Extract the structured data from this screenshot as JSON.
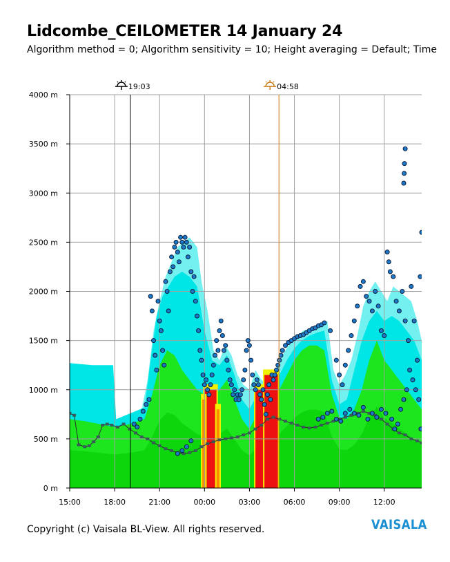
{
  "header": {
    "title": "Lidcombe_CEILOMETER 14 January 24",
    "subtitle": "Algorithm method = 0; Algorithm sensitivity = 10; Height averaging = Default; Time"
  },
  "footer": {
    "copyright": "Copyright (c) Vaisala BL-View. All rights reserved.",
    "logo_text": "VAISALA"
  },
  "colors": {
    "brand": "#1a8fd4",
    "grid": "#a0a0a0",
    "sunset_marker": "#000000",
    "sunrise_marker": "#c87814",
    "backscatter_scale": [
      "#ffffff",
      "#00e5e5",
      "#1ee61e",
      "#00c800",
      "#f0f000",
      "#ff8c00",
      "#ee1111"
    ],
    "cloud_point_fill": "#1e78c8",
    "cloud_point_stroke": "#0a1e3c"
  },
  "chart_data": {
    "type": "heatmap",
    "title": "Lidcombe_CEILOMETER 14 January 24",
    "ylabel": "",
    "xlabel": "",
    "x_unit": "hours since 15:00",
    "x_range": [
      0,
      23.5
    ],
    "x_ticks": [
      {
        "label": "15:00",
        "value": 0
      },
      {
        "label": "18:00",
        "value": 3
      },
      {
        "label": "21:00",
        "value": 6
      },
      {
        "label": "00:00",
        "value": 9
      },
      {
        "label": "03:00",
        "value": 12
      },
      {
        "label": "06:00",
        "value": 15
      },
      {
        "label": "09:00",
        "value": 18
      },
      {
        "label": "12:00",
        "value": 21
      }
    ],
    "y_range": [
      0,
      4000
    ],
    "y_ticks": [
      {
        "label": "0 m",
        "value": 0
      },
      {
        "label": "500 m",
        "value": 500
      },
      {
        "label": "1000 m",
        "value": 1000
      },
      {
        "label": "1500 m",
        "value": 1500
      },
      {
        "label": "2000 m",
        "value": 2000
      },
      {
        "label": "2500 m",
        "value": 2500
      },
      {
        "label": "3000 m",
        "value": 3000
      },
      {
        "label": "3500 m",
        "value": 3500
      },
      {
        "label": "4000 m",
        "value": 4000
      }
    ],
    "grid": true,
    "sun_events": [
      {
        "type": "sunset",
        "label": "19:03",
        "x": 4.05
      },
      {
        "type": "sunrise",
        "label": "04:58",
        "x": 13.97
      }
    ],
    "aerosol_layer_top": [
      [
        0,
        1000
      ],
      [
        0.5,
        1080
      ],
      [
        1,
        1250
      ],
      [
        1.5,
        1230
      ],
      [
        2,
        1220
      ],
      [
        2.7,
        1200
      ],
      [
        3,
        700
      ],
      [
        3.6,
        680
      ],
      [
        4.2,
        720
      ],
      [
        4.8,
        800
      ],
      [
        5.2,
        1100
      ],
      [
        5.6,
        1600
      ],
      [
        6.0,
        1900
      ],
      [
        6.4,
        2150
      ],
      [
        6.8,
        2300
      ],
      [
        7.2,
        2450
      ],
      [
        7.6,
        2500
      ],
      [
        8.0,
        2550
      ],
      [
        8.5,
        2450
      ],
      [
        8.8,
        2100
      ],
      [
        9.2,
        1800
      ],
      [
        9.6,
        1400
      ],
      [
        10.0,
        1300
      ],
      [
        10.4,
        1450
      ],
      [
        10.8,
        1350
      ],
      [
        11.2,
        1150
      ],
      [
        11.6,
        1050
      ],
      [
        12.0,
        1000
      ],
      [
        12.4,
        1200
      ],
      [
        12.8,
        1100
      ],
      [
        13.2,
        1050
      ],
      [
        13.6,
        1150
      ],
      [
        14.0,
        1300
      ],
      [
        14.4,
        1400
      ],
      [
        14.8,
        1500
      ],
      [
        15.2,
        1550
      ],
      [
        15.6,
        1600
      ],
      [
        16.0,
        1620
      ],
      [
        16.4,
        1640
      ],
      [
        16.8,
        1660
      ],
      [
        17.2,
        1700
      ],
      [
        17.6,
        1200
      ],
      [
        18.0,
        1050
      ],
      [
        18.4,
        1150
      ],
      [
        18.8,
        1300
      ],
      [
        19.2,
        1550
      ],
      [
        19.6,
        1850
      ],
      [
        20.0,
        2000
      ],
      [
        20.4,
        2100
      ],
      [
        20.8,
        2000
      ],
      [
        21.2,
        1900
      ],
      [
        21.6,
        2050
      ],
      [
        22.0,
        2000
      ],
      [
        22.4,
        1950
      ],
      [
        22.8,
        1900
      ],
      [
        23.2,
        1700
      ],
      [
        23.5,
        1500
      ]
    ],
    "cyan_layer_top": [
      [
        0,
        1270
      ],
      [
        1.5,
        1250
      ],
      [
        2.9,
        1250
      ],
      [
        3.1,
        700
      ],
      [
        5.0,
        820
      ],
      [
        5.4,
        1300
      ],
      [
        5.8,
        1750
      ],
      [
        6.2,
        1950
      ],
      [
        6.6,
        2050
      ],
      [
        7.0,
        2150
      ],
      [
        7.5,
        2200
      ],
      [
        8.0,
        2150
      ],
      [
        8.5,
        2050
      ],
      [
        9.0,
        1600
      ],
      [
        9.5,
        1300
      ],
      [
        10.0,
        1250
      ],
      [
        10.5,
        1350
      ],
      [
        11.0,
        1150
      ],
      [
        11.5,
        900
      ],
      [
        12.0,
        800
      ],
      [
        12.5,
        950
      ],
      [
        13.0,
        900
      ],
      [
        13.5,
        1000
      ],
      [
        14.0,
        1150
      ],
      [
        14.5,
        1300
      ],
      [
        15.0,
        1420
      ],
      [
        15.5,
        1500
      ],
      [
        16.0,
        1550
      ],
      [
        16.5,
        1580
      ],
      [
        17.0,
        1600
      ],
      [
        17.5,
        1100
      ],
      [
        18.0,
        850
      ],
      [
        18.5,
        900
      ],
      [
        19.0,
        1200
      ],
      [
        19.5,
        1500
      ],
      [
        20.0,
        1700
      ],
      [
        20.5,
        1800
      ],
      [
        21.0,
        1700
      ],
      [
        21.5,
        1750
      ],
      [
        22.0,
        1700
      ],
      [
        22.5,
        1600
      ],
      [
        23.0,
        1500
      ],
      [
        23.5,
        1300
      ]
    ],
    "green_layer_top": [
      [
        0,
        700
      ],
      [
        1.0,
        680
      ],
      [
        2.0,
        650
      ],
      [
        3.0,
        620
      ],
      [
        4.0,
        650
      ],
      [
        5.0,
        700
      ],
      [
        5.5,
        950
      ],
      [
        6.0,
        1250
      ],
      [
        6.5,
        1400
      ],
      [
        7.0,
        1350
      ],
      [
        7.5,
        1200
      ],
      [
        8.0,
        1100
      ],
      [
        8.5,
        1000
      ],
      [
        9.0,
        950
      ],
      [
        9.5,
        900
      ],
      [
        10.0,
        1000
      ],
      [
        10.5,
        1100
      ],
      [
        11.0,
        900
      ],
      [
        11.5,
        700
      ],
      [
        12.0,
        600
      ],
      [
        12.5,
        750
      ],
      [
        13.0,
        700
      ],
      [
        13.5,
        850
      ],
      [
        14.0,
        1000
      ],
      [
        14.5,
        1150
      ],
      [
        15.0,
        1300
      ],
      [
        15.5,
        1400
      ],
      [
        16.0,
        1450
      ],
      [
        16.5,
        1450
      ],
      [
        17.0,
        1400
      ],
      [
        17.5,
        950
      ],
      [
        18.0,
        720
      ],
      [
        18.5,
        700
      ],
      [
        19.0,
        800
      ],
      [
        19.5,
        1000
      ],
      [
        20.0,
        1300
      ],
      [
        20.5,
        1500
      ],
      [
        21.0,
        1300
      ],
      [
        21.5,
        1200
      ],
      [
        22.0,
        1100
      ],
      [
        22.5,
        1000
      ],
      [
        23.0,
        900
      ],
      [
        23.5,
        800
      ]
    ],
    "strong_backscatter_zones": [
      {
        "x0": 9.0,
        "x1": 9.8,
        "y0": 0,
        "y1": 1000,
        "color": "#ee1111"
      },
      {
        "x0": 12.4,
        "x1": 13.0,
        "y0": 0,
        "y1": 1000,
        "color": "#ee1111"
      },
      {
        "x0": 13.0,
        "x1": 13.9,
        "y0": 0,
        "y1": 1150,
        "color": "#ee1111"
      },
      {
        "x0": 8.85,
        "x1": 9.05,
        "y0": 0,
        "y1": 900,
        "color": "#ff8c00"
      },
      {
        "x0": 9.8,
        "x1": 10.0,
        "y0": 0,
        "y1": 800,
        "color": "#ff8c00"
      }
    ],
    "mixing_layer_height_points": [
      [
        0,
        760
      ],
      [
        0.3,
        740
      ],
      [
        0.6,
        440
      ],
      [
        1.0,
        420
      ],
      [
        1.3,
        430
      ],
      [
        1.6,
        470
      ],
      [
        1.9,
        520
      ],
      [
        2.2,
        640
      ],
      [
        2.5,
        650
      ],
      [
        2.8,
        640
      ],
      [
        3.2,
        620
      ],
      [
        3.6,
        650
      ],
      [
        4.0,
        600
      ],
      [
        4.4,
        560
      ],
      [
        4.8,
        520
      ],
      [
        5.2,
        500
      ],
      [
        5.6,
        460
      ],
      [
        6.0,
        430
      ],
      [
        6.4,
        400
      ],
      [
        6.8,
        380
      ],
      [
        7.2,
        360
      ],
      [
        7.6,
        350
      ],
      [
        8.0,
        360
      ],
      [
        8.4,
        380
      ],
      [
        8.8,
        420
      ],
      [
        9.2,
        450
      ],
      [
        9.6,
        470
      ],
      [
        10.0,
        490
      ],
      [
        10.4,
        500
      ],
      [
        10.8,
        510
      ],
      [
        11.2,
        520
      ],
      [
        11.6,
        540
      ],
      [
        12.0,
        560
      ],
      [
        12.4,
        600
      ],
      [
        12.8,
        640
      ],
      [
        13.2,
        700
      ],
      [
        13.6,
        720
      ],
      [
        14.0,
        700
      ],
      [
        14.4,
        680
      ],
      [
        14.8,
        660
      ],
      [
        15.2,
        640
      ],
      [
        15.6,
        620
      ],
      [
        16.0,
        610
      ],
      [
        16.4,
        620
      ],
      [
        16.8,
        640
      ],
      [
        17.2,
        660
      ],
      [
        17.6,
        680
      ],
      [
        18.0,
        700
      ],
      [
        18.4,
        720
      ],
      [
        18.8,
        740
      ],
      [
        19.2,
        760
      ],
      [
        19.6,
        780
      ],
      [
        20.0,
        760
      ],
      [
        20.4,
        740
      ],
      [
        20.8,
        700
      ],
      [
        21.2,
        650
      ],
      [
        21.6,
        600
      ],
      [
        22.0,
        560
      ],
      [
        22.4,
        540
      ],
      [
        22.8,
        500
      ],
      [
        23.2,
        480
      ],
      [
        23.5,
        460
      ]
    ],
    "cloud_base_points": [
      [
        5.4,
        1950
      ],
      [
        5.5,
        1800
      ],
      [
        5.6,
        1500
      ],
      [
        5.7,
        1350
      ],
      [
        5.8,
        1200
      ],
      [
        5.9,
        1900
      ],
      [
        6.0,
        1700
      ],
      [
        6.1,
        1600
      ],
      [
        6.2,
        1400
      ],
      [
        6.3,
        1250
      ],
      [
        6.4,
        2100
      ],
      [
        6.5,
        2000
      ],
      [
        6.6,
        1800
      ],
      [
        6.7,
        2200
      ],
      [
        6.8,
        2350
      ],
      [
        6.9,
        2250
      ],
      [
        7.0,
        2450
      ],
      [
        7.1,
        2500
      ],
      [
        7.2,
        2400
      ],
      [
        7.3,
        2300
      ],
      [
        7.4,
        2550
      ],
      [
        7.5,
        2500
      ],
      [
        7.6,
        2450
      ],
      [
        7.7,
        2550
      ],
      [
        7.8,
        2500
      ],
      [
        7.9,
        2350
      ],
      [
        8.0,
        2450
      ],
      [
        8.1,
        2200
      ],
      [
        8.2,
        2000
      ],
      [
        8.3,
        2150
      ],
      [
        8.4,
        1900
      ],
      [
        8.5,
        1750
      ],
      [
        8.6,
        1600
      ],
      [
        8.7,
        1400
      ],
      [
        8.8,
        1300
      ],
      [
        8.9,
        1150
      ],
      [
        9.0,
        1050
      ],
      [
        9.1,
        1100
      ],
      [
        9.2,
        1000
      ],
      [
        9.3,
        950
      ],
      [
        9.4,
        1050
      ],
      [
        9.5,
        1150
      ],
      [
        9.6,
        1250
      ],
      [
        9.7,
        1350
      ],
      [
        9.8,
        1500
      ],
      [
        9.9,
        1400
      ],
      [
        10.0,
        1600
      ],
      [
        10.1,
        1700
      ],
      [
        10.2,
        1550
      ],
      [
        10.3,
        1400
      ],
      [
        10.4,
        1450
      ],
      [
        10.5,
        1300
      ],
      [
        10.6,
        1200
      ],
      [
        10.7,
        1100
      ],
      [
        10.8,
        1050
      ],
      [
        10.9,
        950
      ],
      [
        11.0,
        1000
      ],
      [
        11.1,
        900
      ],
      [
        11.2,
        950
      ],
      [
        11.3,
        900
      ],
      [
        11.4,
        950
      ],
      [
        11.5,
        1000
      ],
      [
        11.6,
        1100
      ],
      [
        11.7,
        1200
      ],
      [
        11.8,
        1400
      ],
      [
        11.9,
        1500
      ],
      [
        12.0,
        1450
      ],
      [
        12.1,
        1300
      ],
      [
        12.2,
        1150
      ],
      [
        12.3,
        1050
      ],
      [
        12.4,
        1000
      ],
      [
        12.5,
        1100
      ],
      [
        12.6,
        1050
      ],
      [
        12.7,
        950
      ],
      [
        12.8,
        900
      ],
      [
        12.9,
        1000
      ],
      [
        13.0,
        850
      ],
      [
        13.1,
        750
      ],
      [
        13.2,
        950
      ],
      [
        13.3,
        1050
      ],
      [
        13.4,
        900
      ],
      [
        13.5,
        1150
      ],
      [
        13.6,
        1100
      ],
      [
        13.7,
        1150
      ],
      [
        13.8,
        1200
      ],
      [
        13.9,
        1250
      ],
      [
        14.0,
        1300
      ],
      [
        14.1,
        1350
      ],
      [
        14.2,
        1400
      ],
      [
        14.4,
        1450
      ],
      [
        14.6,
        1480
      ],
      [
        14.8,
        1500
      ],
      [
        15.0,
        1520
      ],
      [
        15.2,
        1540
      ],
      [
        15.4,
        1550
      ],
      [
        15.6,
        1560
      ],
      [
        15.8,
        1580
      ],
      [
        16.0,
        1600
      ],
      [
        16.2,
        1620
      ],
      [
        16.4,
        1630
      ],
      [
        16.6,
        1650
      ],
      [
        16.8,
        1660
      ],
      [
        17.0,
        1680
      ],
      [
        17.4,
        1600
      ],
      [
        17.8,
        1300
      ],
      [
        18.0,
        1150
      ],
      [
        18.2,
        1050
      ],
      [
        18.4,
        1250
      ],
      [
        18.6,
        1400
      ],
      [
        18.8,
        1550
      ],
      [
        19.0,
        1700
      ],
      [
        19.2,
        1850
      ],
      [
        19.4,
        2050
      ],
      [
        19.6,
        2100
      ],
      [
        19.8,
        1950
      ],
      [
        20.0,
        1900
      ],
      [
        20.2,
        1800
      ],
      [
        20.4,
        2000
      ],
      [
        20.6,
        1850
      ],
      [
        20.8,
        1600
      ],
      [
        21.0,
        1550
      ],
      [
        21.2,
        2400
      ],
      [
        21.3,
        2300
      ],
      [
        21.4,
        2200
      ],
      [
        21.6,
        2150
      ],
      [
        21.8,
        1900
      ],
      [
        22.0,
        1800
      ],
      [
        22.2,
        2000
      ],
      [
        22.4,
        1700
      ],
      [
        22.6,
        1500
      ],
      [
        22.8,
        2050
      ],
      [
        23.0,
        1700
      ],
      [
        23.2,
        1300
      ],
      [
        23.4,
        2150
      ],
      [
        23.5,
        2600
      ],
      [
        22.3,
        3100
      ],
      [
        22.35,
        3300
      ],
      [
        22.4,
        3450
      ],
      [
        22.33,
        3200
      ],
      [
        21.5,
        700
      ],
      [
        21.7,
        600
      ],
      [
        21.9,
        650
      ],
      [
        22.1,
        800
      ],
      [
        22.3,
        900
      ],
      [
        22.5,
        1000
      ],
      [
        22.7,
        1200
      ],
      [
        22.9,
        1100
      ],
      [
        23.1,
        1000
      ],
      [
        23.3,
        900
      ],
      [
        23.45,
        600
      ],
      [
        4.3,
        650
      ],
      [
        4.5,
        620
      ],
      [
        4.7,
        700
      ],
      [
        4.9,
        780
      ],
      [
        5.1,
        850
      ],
      [
        5.3,
        900
      ],
      [
        16.6,
        700
      ],
      [
        16.9,
        720
      ],
      [
        17.2,
        760
      ],
      [
        17.5,
        780
      ],
      [
        17.8,
        700
      ],
      [
        18.1,
        680
      ],
      [
        18.4,
        760
      ],
      [
        18.7,
        800
      ],
      [
        19.0,
        760
      ],
      [
        19.3,
        740
      ],
      [
        19.6,
        820
      ],
      [
        19.9,
        700
      ],
      [
        20.2,
        760
      ],
      [
        20.5,
        720
      ],
      [
        20.8,
        800
      ],
      [
        21.1,
        760
      ],
      [
        7.2,
        350
      ],
      [
        7.5,
        380
      ],
      [
        7.8,
        420
      ],
      [
        8.1,
        480
      ]
    ]
  }
}
